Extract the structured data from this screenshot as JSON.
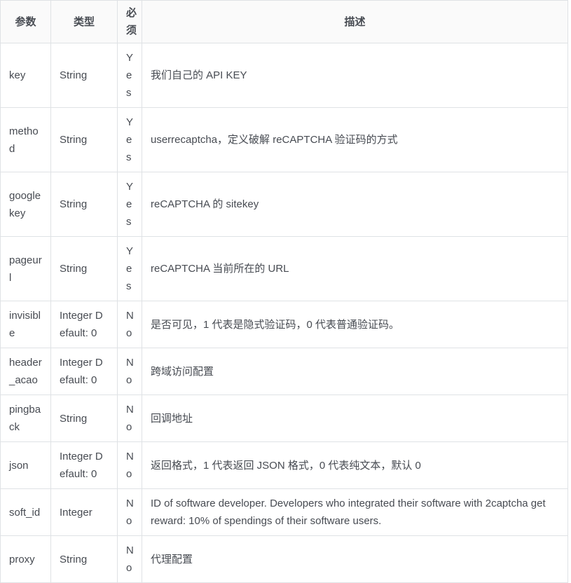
{
  "table": {
    "colors": {
      "border": "#dfe2e5",
      "header_bg": "#fafafa",
      "text": "#474b52"
    },
    "columns": {
      "param": "参数",
      "type": "类型",
      "required": "必须",
      "desc": "描述"
    },
    "rows": [
      {
        "param": "key",
        "type": "String",
        "required": "Yes",
        "desc": "我们自己的 API KEY"
      },
      {
        "param": "method",
        "type": "String",
        "required": "Yes",
        "desc": "userrecaptcha，定义破解 reCAPTCHA 验证码的方式"
      },
      {
        "param": "googlekey",
        "type": "String",
        "required": "Yes",
        "desc": "reCAPTCHA 的 sitekey"
      },
      {
        "param": "pageurl",
        "type": "String",
        "required": "Yes",
        "desc": "reCAPTCHA 当前所在的 URL"
      },
      {
        "param": "invisible",
        "type": "Integer Default: 0",
        "required": "No",
        "desc": "是否可见，1 代表是隐式验证码，0 代表普通验证码。"
      },
      {
        "param": "header_acao",
        "type": "Integer Default: 0",
        "required": "No",
        "desc": "跨域访问配置"
      },
      {
        "param": "pingback",
        "type": "String",
        "required": "No",
        "desc": "回调地址"
      },
      {
        "param": "json",
        "type": "Integer Default: 0",
        "required": "No",
        "desc": "返回格式，1 代表返回 JSON 格式，0 代表纯文本，默认 0"
      },
      {
        "param": "soft_id",
        "type": "Integer",
        "required": "No",
        "desc": "ID of software developer. Developers who integrated their software with 2captcha get reward: 10% of spendings of their software users."
      },
      {
        "param": "proxy",
        "type": "String",
        "required": "No",
        "desc": "代理配置"
      }
    ]
  }
}
